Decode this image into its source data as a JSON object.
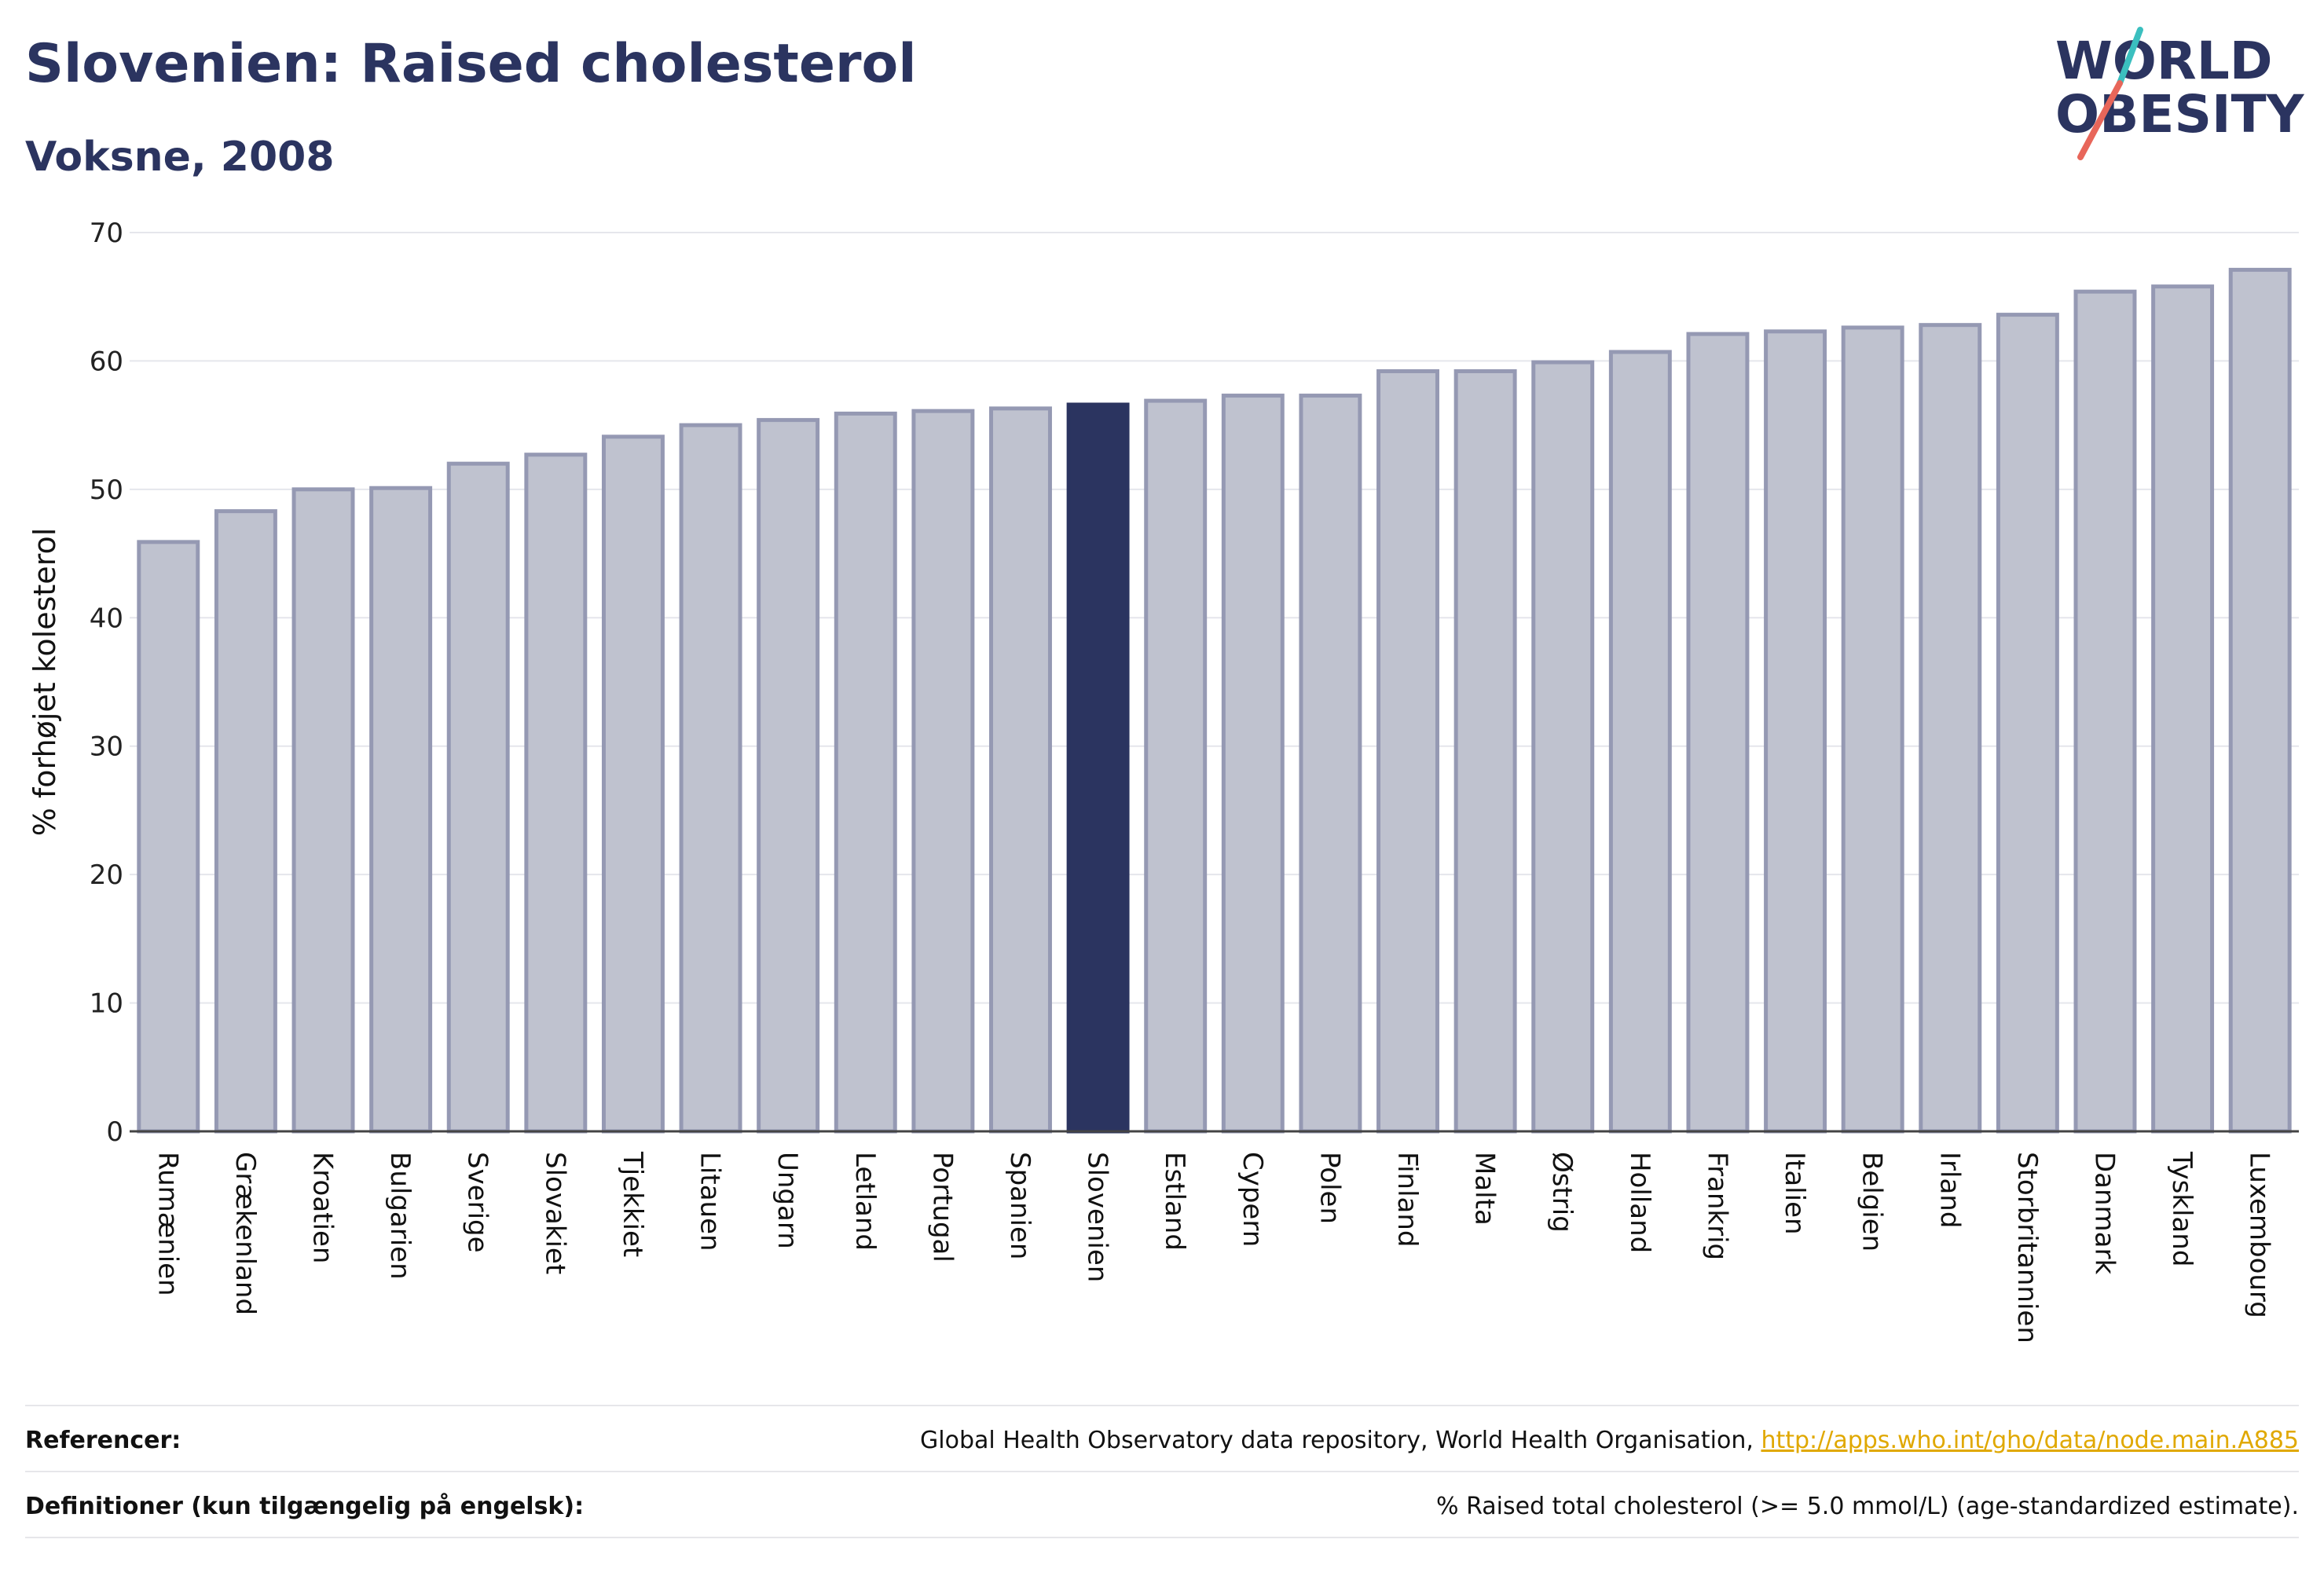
{
  "header": {
    "title": "Slovenien: Raised cholesterol",
    "subtitle": "Voksne, 2008"
  },
  "logo": {
    "line1": "WORLD",
    "line2": "OBESITY",
    "accent_teal": "#3bbfbf",
    "accent_coral": "#e8665a"
  },
  "colors": {
    "bar": "#bfc2cf",
    "bar_border": "#9599b3",
    "highlight": "#2b3460",
    "text": "#2b3460"
  },
  "chart_data": {
    "type": "bar",
    "ylabel": "% forhøjet kolesterol",
    "ylim": [
      0,
      70
    ],
    "yticks": [
      0,
      10,
      20,
      30,
      40,
      50,
      60,
      70
    ],
    "grid": true,
    "highlight": "Slovenien",
    "categories": [
      "Rumænien",
      "Grækenland",
      "Kroatien",
      "Bulgarien",
      "Sverige",
      "Slovakiet",
      "Tjekkiet",
      "Litauen",
      "Ungarn",
      "Letland",
      "Portugal",
      "Spanien",
      "Slovenien",
      "Estland",
      "Cypern",
      "Polen",
      "Finland",
      "Malta",
      "Østrig",
      "Holland",
      "Frankrig",
      "Italien",
      "Belgien",
      "Irland",
      "Storbritannien",
      "Danmark",
      "Tyskland",
      "Luxembourg"
    ],
    "values": [
      45.9,
      48.3,
      50.0,
      50.1,
      52.0,
      52.7,
      54.1,
      55.0,
      55.4,
      55.9,
      56.1,
      56.3,
      56.6,
      56.9,
      57.3,
      57.3,
      59.2,
      59.2,
      59.9,
      60.7,
      62.1,
      62.3,
      62.6,
      62.8,
      63.6,
      65.4,
      65.8,
      67.1
    ]
  },
  "footer": {
    "ref_label": "Referencer:",
    "ref_text": "Global Health Observatory data repository, World Health Organisation, ",
    "ref_link": "http://apps.who.int/gho/data/node.main.A885",
    "def_label": "Definitioner (kun tilgængelig på engelsk):",
    "def_text": "% Raised total cholesterol (>= 5.0 mmol/L) (age-standardized estimate)."
  }
}
